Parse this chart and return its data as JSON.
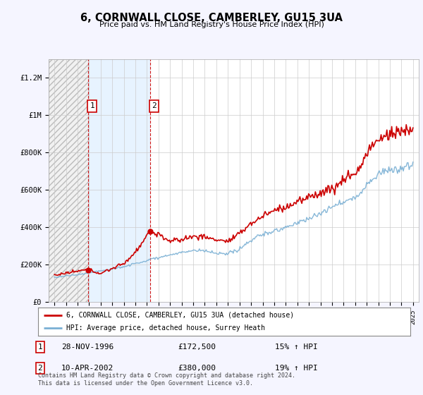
{
  "title": "6, CORNWALL CLOSE, CAMBERLEY, GU15 3UA",
  "subtitle": "Price paid vs. HM Land Registry's House Price Index (HPI)",
  "ylim": [
    0,
    1300000
  ],
  "yticks": [
    0,
    200000,
    400000,
    600000,
    800000,
    1000000,
    1200000
  ],
  "ytick_labels": [
    "£0",
    "£200K",
    "£400K",
    "£600K",
    "£800K",
    "£1M",
    "£1.2M"
  ],
  "bg_color": "#f5f5ff",
  "sale1_year": 1996.91,
  "sale1_price": 172500,
  "sale2_year": 2002.27,
  "sale2_price": 380000,
  "sale1_date": "28-NOV-1996",
  "sale1_amount": "£172,500",
  "sale1_hpi": "15% ↑ HPI",
  "sale2_date": "10-APR-2002",
  "sale2_amount": "£380,000",
  "sale2_hpi": "19% ↑ HPI",
  "house_line_color": "#cc0000",
  "hpi_line_color": "#7ab0d4",
  "legend1_label": "6, CORNWALL CLOSE, CAMBERLEY, GU15 3UA (detached house)",
  "legend2_label": "HPI: Average price, detached house, Surrey Heath",
  "footer": "Contains HM Land Registry data © Crown copyright and database right 2024.\nThis data is licensed under the Open Government Licence v3.0.",
  "xmin": 1993.5,
  "xmax": 2025.5
}
